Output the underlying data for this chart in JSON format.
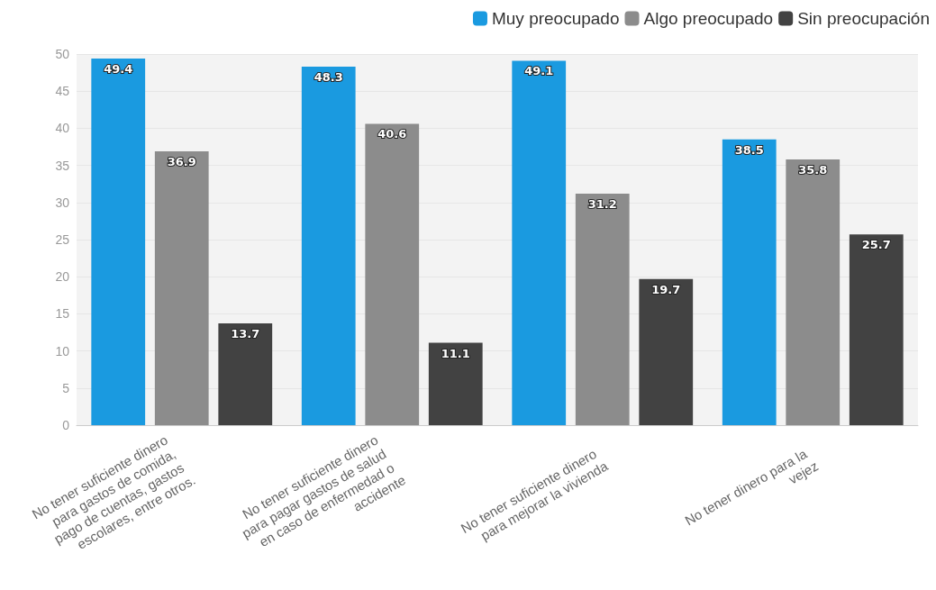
{
  "chart_data": {
    "type": "bar",
    "categories": [
      "No tener suficiente dinero para gastos de comida, pago de cuentas, gastos escolares, entre otros.",
      "No tener suficiente dinero para pagar gastos de salud en caso de enfermedad o accidente",
      "No tener suficiente dinero para mejorar la vivienda",
      "No tener dinero para la vejez"
    ],
    "series": [
      {
        "name": "Muy preocupado",
        "color": "#1a9ae0",
        "values": [
          49.4,
          48.3,
          49.1,
          38.5
        ]
      },
      {
        "name": "Algo preocupado",
        "color": "#8c8c8c",
        "values": [
          36.9,
          40.6,
          31.2,
          35.8
        ]
      },
      {
        "name": "Sin preocupación",
        "color": "#424242",
        "values": [
          13.7,
          11.1,
          19.7,
          25.7
        ]
      }
    ],
    "ylim": [
      0,
      50
    ],
    "yticks": [
      0,
      5,
      10,
      15,
      20,
      25,
      30,
      35,
      40,
      45,
      50
    ],
    "grid": "y",
    "legend": "top right",
    "data_labels": true
  }
}
